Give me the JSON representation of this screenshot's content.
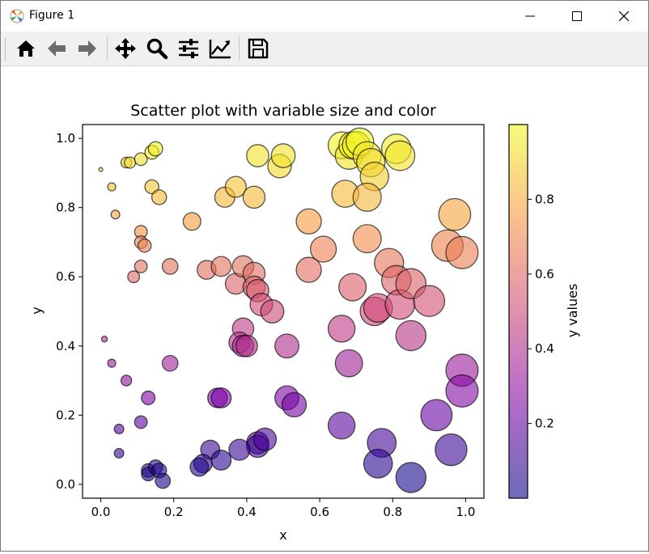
{
  "window": {
    "title": "Figure 1"
  },
  "toolbar": {
    "items": [
      {
        "name": "home-icon"
      },
      {
        "name": "back-arrow-icon"
      },
      {
        "name": "forward-arrow-icon"
      },
      {
        "name": "pan-icon"
      },
      {
        "name": "zoom-icon"
      },
      {
        "name": "configure-subplots-icon"
      },
      {
        "name": "edit-axis-icon"
      },
      {
        "name": "save-icon"
      }
    ]
  },
  "chart_data": {
    "type": "scatter",
    "title": "Scatter plot with variable size and color",
    "xlabel": "x",
    "ylabel": "y",
    "xlim": [
      -0.05,
      1.05
    ],
    "ylim": [
      -0.04,
      1.04
    ],
    "xticks": [
      "0.0",
      "0.2",
      "0.4",
      "0.6",
      "0.8",
      "1.0"
    ],
    "yticks": [
      "0.0",
      "0.2",
      "0.4",
      "0.6",
      "0.8",
      "1.0"
    ],
    "colormap": "plasma",
    "alpha": 0.6,
    "edgecolor": "#000000",
    "grid": false,
    "colorbar": {
      "label": "y values",
      "range": [
        0.0,
        1.0
      ],
      "ticks": [
        "0.2",
        "0.4",
        "0.6",
        "0.8"
      ]
    },
    "note_size": "marker area grows with x value",
    "points": [
      {
        "x": 0.0,
        "y": 0.91
      },
      {
        "x": 0.03,
        "y": 0.86
      },
      {
        "x": 0.04,
        "y": 0.78
      },
      {
        "x": 0.07,
        "y": 0.93
      },
      {
        "x": 0.08,
        "y": 0.93
      },
      {
        "x": 0.11,
        "y": 0.94
      },
      {
        "x": 0.14,
        "y": 0.96
      },
      {
        "x": 0.15,
        "y": 0.97
      },
      {
        "x": 0.14,
        "y": 0.86
      },
      {
        "x": 0.16,
        "y": 0.83
      },
      {
        "x": 0.11,
        "y": 0.73
      },
      {
        "x": 0.11,
        "y": 0.7
      },
      {
        "x": 0.12,
        "y": 0.69
      },
      {
        "x": 0.11,
        "y": 0.63
      },
      {
        "x": 0.09,
        "y": 0.6
      },
      {
        "x": 0.19,
        "y": 0.63
      },
      {
        "x": 0.25,
        "y": 0.76
      },
      {
        "x": 0.34,
        "y": 0.83
      },
      {
        "x": 0.37,
        "y": 0.86
      },
      {
        "x": 0.42,
        "y": 0.83
      },
      {
        "x": 0.43,
        "y": 0.95
      },
      {
        "x": 0.49,
        "y": 0.92
      },
      {
        "x": 0.5,
        "y": 0.95
      },
      {
        "x": 0.29,
        "y": 0.62
      },
      {
        "x": 0.33,
        "y": 0.63
      },
      {
        "x": 0.37,
        "y": 0.58
      },
      {
        "x": 0.39,
        "y": 0.63
      },
      {
        "x": 0.42,
        "y": 0.61
      },
      {
        "x": 0.42,
        "y": 0.57
      },
      {
        "x": 0.43,
        "y": 0.56
      },
      {
        "x": 0.44,
        "y": 0.52
      },
      {
        "x": 0.47,
        "y": 0.5
      },
      {
        "x": 0.39,
        "y": 0.45
      },
      {
        "x": 0.38,
        "y": 0.41
      },
      {
        "x": 0.39,
        "y": 0.4
      },
      {
        "x": 0.4,
        "y": 0.4
      },
      {
        "x": 0.51,
        "y": 0.4
      },
      {
        "x": 0.57,
        "y": 0.76
      },
      {
        "x": 0.61,
        "y": 0.68
      },
      {
        "x": 0.57,
        "y": 0.62
      },
      {
        "x": 0.66,
        "y": 0.98
      },
      {
        "x": 0.68,
        "y": 0.95
      },
      {
        "x": 0.69,
        "y": 0.98
      },
      {
        "x": 0.7,
        "y": 0.98
      },
      {
        "x": 0.71,
        "y": 0.99
      },
      {
        "x": 0.73,
        "y": 0.95
      },
      {
        "x": 0.74,
        "y": 0.93
      },
      {
        "x": 0.75,
        "y": 0.89
      },
      {
        "x": 0.81,
        "y": 0.97
      },
      {
        "x": 0.82,
        "y": 0.95
      },
      {
        "x": 0.67,
        "y": 0.84
      },
      {
        "x": 0.73,
        "y": 0.83
      },
      {
        "x": 0.73,
        "y": 0.71
      },
      {
        "x": 0.69,
        "y": 0.57
      },
      {
        "x": 0.75,
        "y": 0.5
      },
      {
        "x": 0.76,
        "y": 0.51
      },
      {
        "x": 0.79,
        "y": 0.64
      },
      {
        "x": 0.81,
        "y": 0.59
      },
      {
        "x": 0.82,
        "y": 0.52
      },
      {
        "x": 0.85,
        "y": 0.58
      },
      {
        "x": 0.9,
        "y": 0.53
      },
      {
        "x": 0.85,
        "y": 0.43
      },
      {
        "x": 0.95,
        "y": 0.69
      },
      {
        "x": 0.97,
        "y": 0.78
      },
      {
        "x": 0.99,
        "y": 0.67
      },
      {
        "x": 0.66,
        "y": 0.45
      },
      {
        "x": 0.68,
        "y": 0.35
      },
      {
        "x": 0.99,
        "y": 0.33
      },
      {
        "x": 0.99,
        "y": 0.27
      },
      {
        "x": 0.92,
        "y": 0.2
      },
      {
        "x": 0.96,
        "y": 0.1
      },
      {
        "x": 0.85,
        "y": 0.02
      },
      {
        "x": 0.77,
        "y": 0.12
      },
      {
        "x": 0.76,
        "y": 0.06
      },
      {
        "x": 0.66,
        "y": 0.17
      },
      {
        "x": 0.51,
        "y": 0.25
      },
      {
        "x": 0.53,
        "y": 0.23
      },
      {
        "x": 0.32,
        "y": 0.25
      },
      {
        "x": 0.33,
        "y": 0.25
      },
      {
        "x": 0.43,
        "y": 0.12
      },
      {
        "x": 0.43,
        "y": 0.11
      },
      {
        "x": 0.45,
        "y": 0.13
      },
      {
        "x": 0.38,
        "y": 0.1
      },
      {
        "x": 0.3,
        "y": 0.1
      },
      {
        "x": 0.28,
        "y": 0.06
      },
      {
        "x": 0.27,
        "y": 0.05
      },
      {
        "x": 0.33,
        "y": 0.07
      },
      {
        "x": 0.01,
        "y": 0.42
      },
      {
        "x": 0.03,
        "y": 0.35
      },
      {
        "x": 0.07,
        "y": 0.3
      },
      {
        "x": 0.19,
        "y": 0.35
      },
      {
        "x": 0.13,
        "y": 0.25
      },
      {
        "x": 0.11,
        "y": 0.18
      },
      {
        "x": 0.05,
        "y": 0.16
      },
      {
        "x": 0.05,
        "y": 0.09
      },
      {
        "x": 0.13,
        "y": 0.04
      },
      {
        "x": 0.13,
        "y": 0.03
      },
      {
        "x": 0.15,
        "y": 0.05
      },
      {
        "x": 0.16,
        "y": 0.04
      },
      {
        "x": 0.17,
        "y": 0.01
      }
    ]
  }
}
